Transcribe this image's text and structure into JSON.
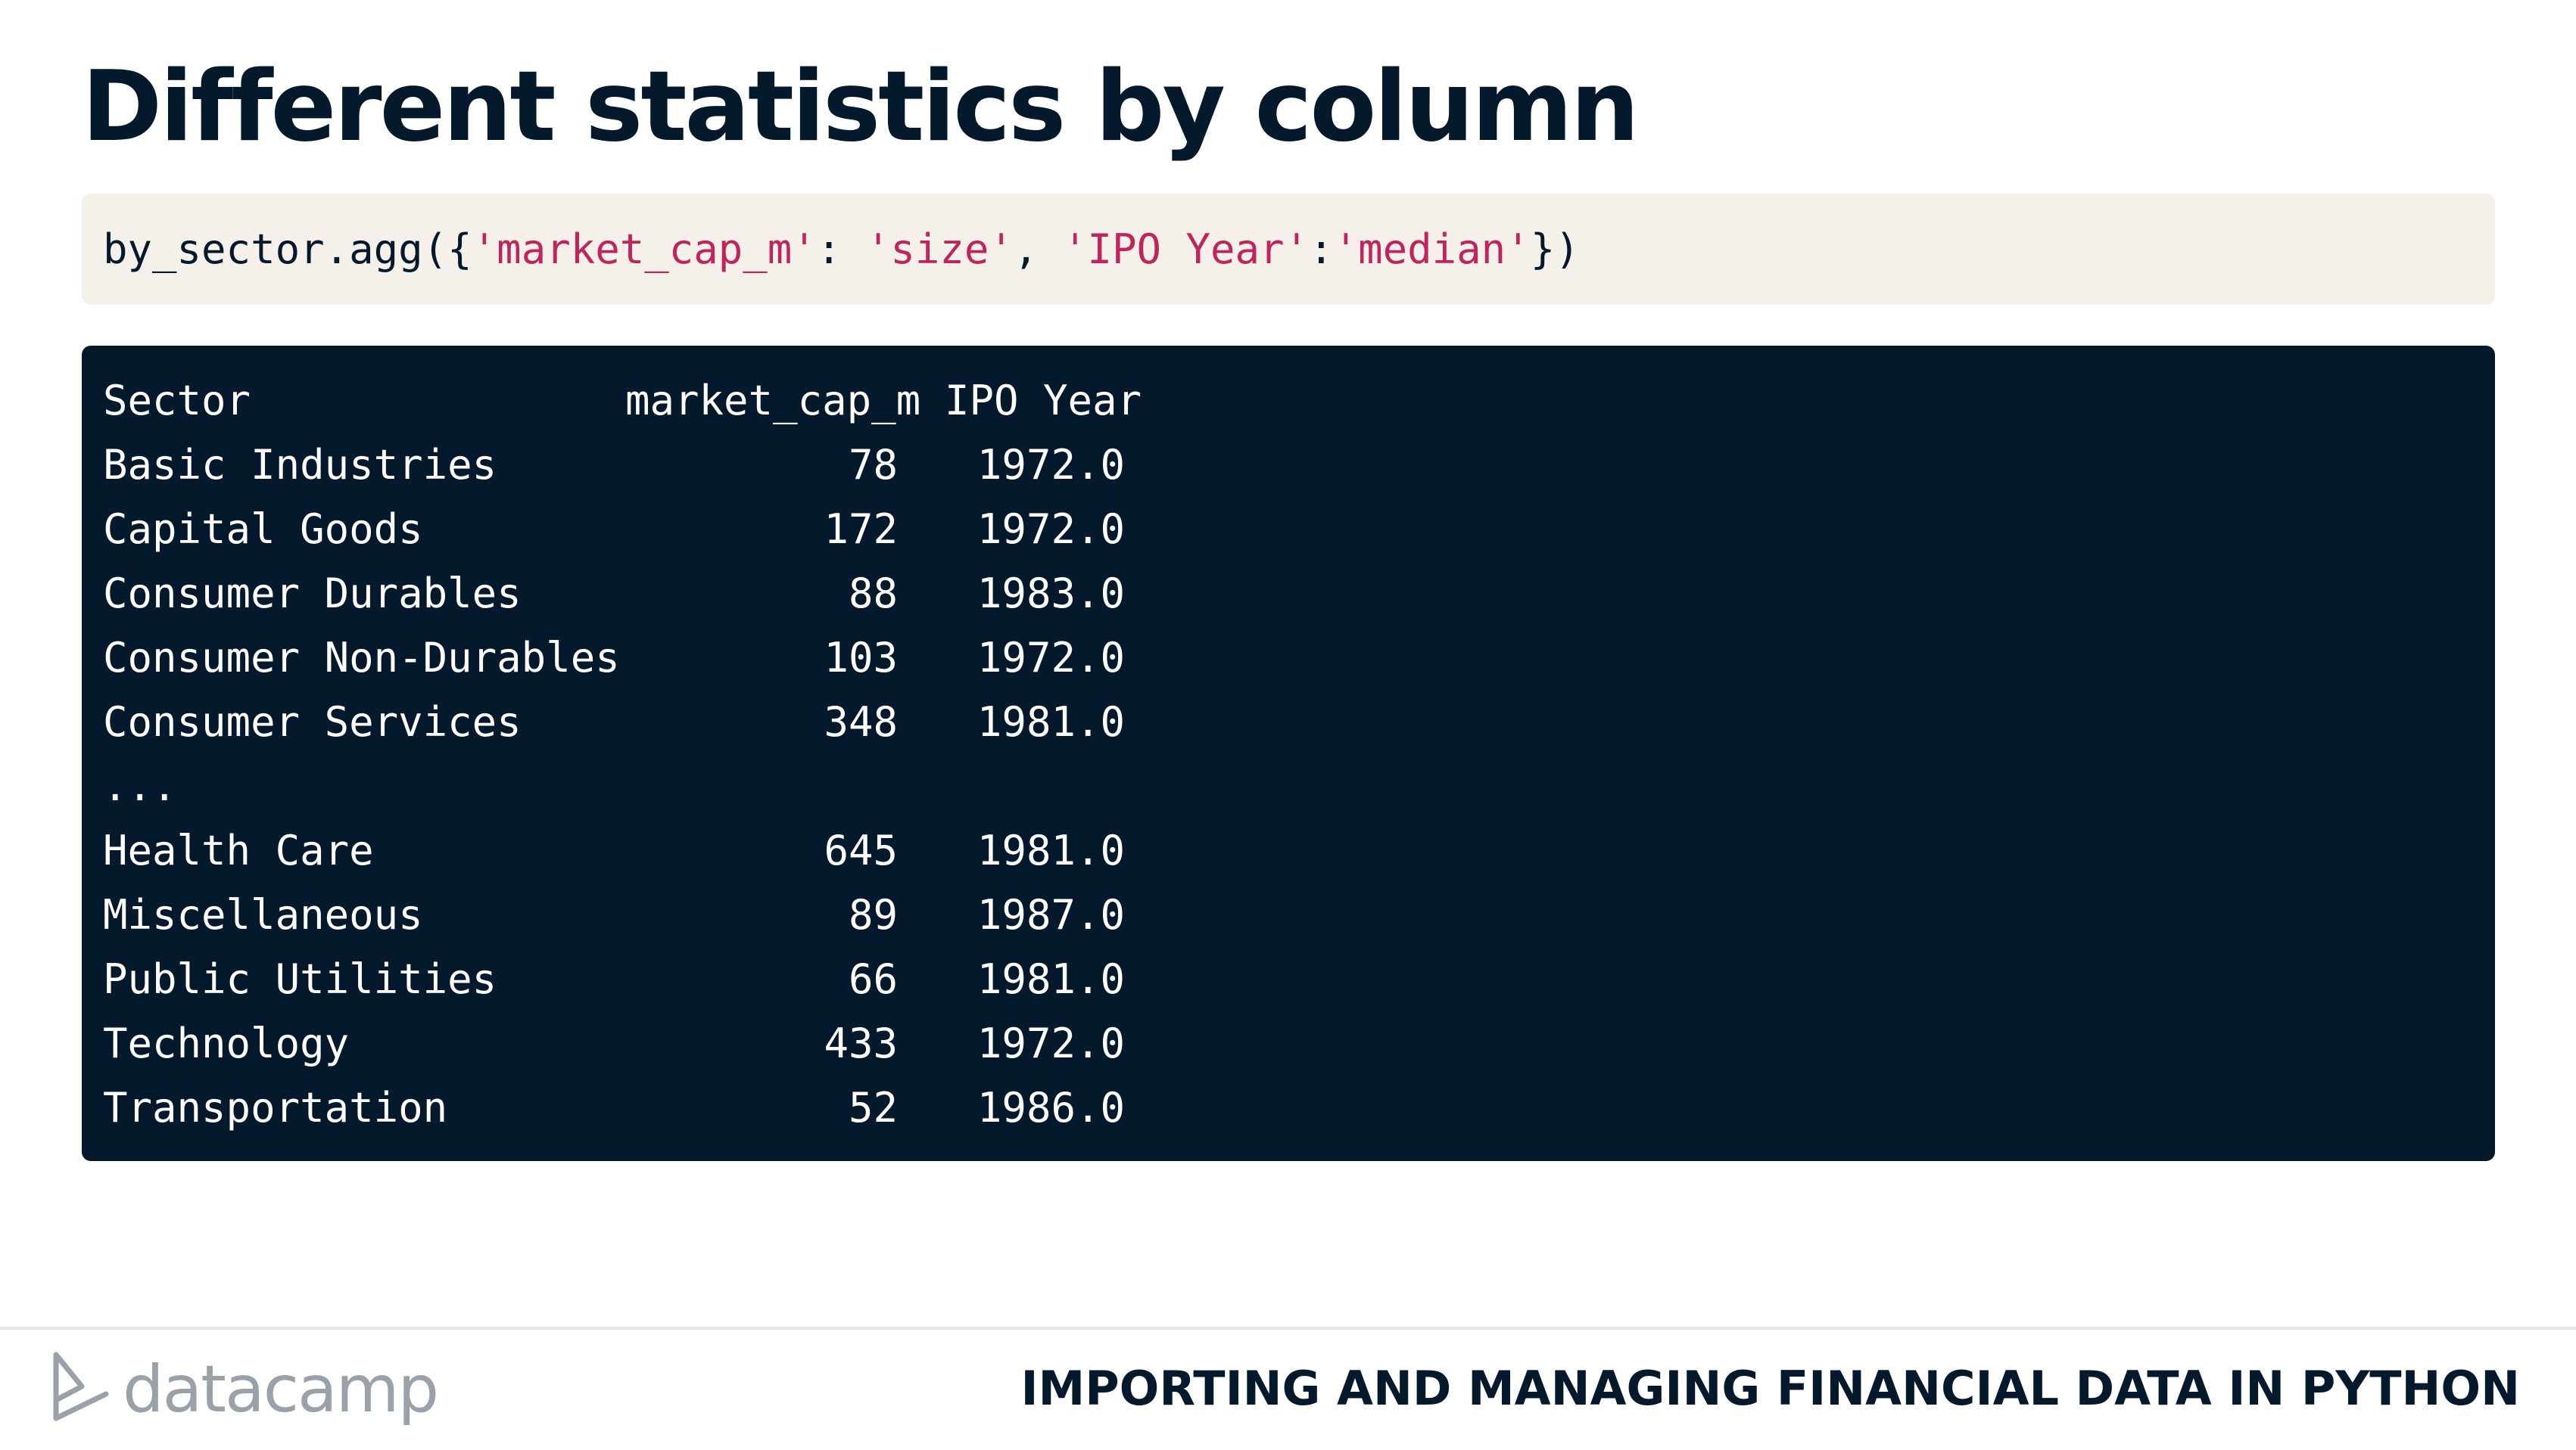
{
  "slide": {
    "title": "Different statistics by column"
  },
  "code": {
    "prefix": "by_sector.agg({",
    "key1": "'market_cap_m'",
    "sep1": ": ",
    "val1": "'size'",
    "sep2": ", ",
    "key2": "'IPO Year'",
    "sep3": ":",
    "val2": "'median'",
    "suffix": "})"
  },
  "output": {
    "headers": {
      "index": "Sector",
      "col1": "market_cap_m",
      "col2": "IPO Year"
    },
    "rows": [
      {
        "sector": "Basic Industries",
        "market_cap_m": "78",
        "ipo_year": "1972.0"
      },
      {
        "sector": "Capital Goods",
        "market_cap_m": "172",
        "ipo_year": "1972.0"
      },
      {
        "sector": "Consumer Durables",
        "market_cap_m": "88",
        "ipo_year": "1983.0"
      },
      {
        "sector": "Consumer Non-Durables",
        "market_cap_m": "103",
        "ipo_year": "1972.0"
      },
      {
        "sector": "Consumer Services",
        "market_cap_m": "348",
        "ipo_year": "1981.0"
      },
      {
        "sector": "...",
        "market_cap_m": "",
        "ipo_year": ""
      },
      {
        "sector": "Health Care",
        "market_cap_m": "645",
        "ipo_year": "1981.0"
      },
      {
        "sector": "Miscellaneous",
        "market_cap_m": "89",
        "ipo_year": "1987.0"
      },
      {
        "sector": "Public Utilities",
        "market_cap_m": "66",
        "ipo_year": "1981.0"
      },
      {
        "sector": "Technology",
        "market_cap_m": "433",
        "ipo_year": "1972.0"
      },
      {
        "sector": "Transportation",
        "market_cap_m": "52",
        "ipo_year": "1986.0"
      }
    ]
  },
  "footer": {
    "logo_text": "datacamp",
    "logo_icon": "datacamp-logo-icon",
    "course_title": "IMPORTING AND MANAGING FINANCIAL DATA IN PYTHON"
  },
  "colors": {
    "navy": "#05192d",
    "code_bg": "#f5f1ea",
    "string": "#c0245c",
    "logo_gray": "#9aa1a8"
  }
}
